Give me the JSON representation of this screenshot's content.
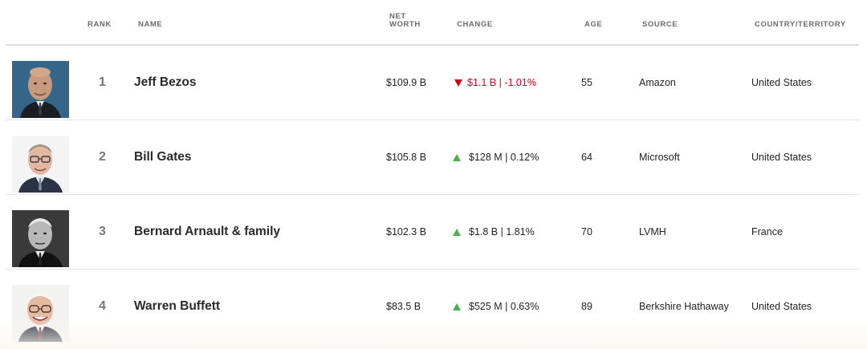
{
  "header": {
    "rank": "RANK",
    "name": "NAME",
    "net_worth_line1": "NET",
    "net_worth_line2": "WORTH",
    "change": "CHANGE",
    "age": "AGE",
    "source": "SOURCE",
    "country": "COUNTRY/TERRITORY"
  },
  "rows": [
    {
      "rank": "1",
      "name": "Jeff Bezos",
      "net_worth": "$109.9 B",
      "change_direction": "down",
      "change_text": "$1.1 B | -1.01%",
      "age": "55",
      "source": "Amazon",
      "country": "United States",
      "photo_icon": "portrait-photo"
    },
    {
      "rank": "2",
      "name": "Bill Gates",
      "net_worth": "$105.8 B",
      "change_direction": "up",
      "change_text": "$128 M | 0.12%",
      "age": "64",
      "source": "Microsoft",
      "country": "United States",
      "photo_icon": "portrait-photo"
    },
    {
      "rank": "3",
      "name": "Bernard Arnault & family",
      "net_worth": "$102.3 B",
      "change_direction": "up",
      "change_text": "$1.8 B | 1.81%",
      "age": "70",
      "source": "LVMH",
      "country": "France",
      "photo_icon": "portrait-photo"
    },
    {
      "rank": "4",
      "name": "Warren Buffett",
      "net_worth": "$83.5 B",
      "change_direction": "up",
      "change_text": "$525 M | 0.63%",
      "age": "89",
      "source": "Berkshire Hathaway",
      "country": "United States",
      "photo_icon": "portrait-photo"
    }
  ],
  "colors": {
    "down": "#d0021b",
    "up": "#4caf50",
    "header_text": "#6b6b6b",
    "divider": "#e6e6e6"
  }
}
